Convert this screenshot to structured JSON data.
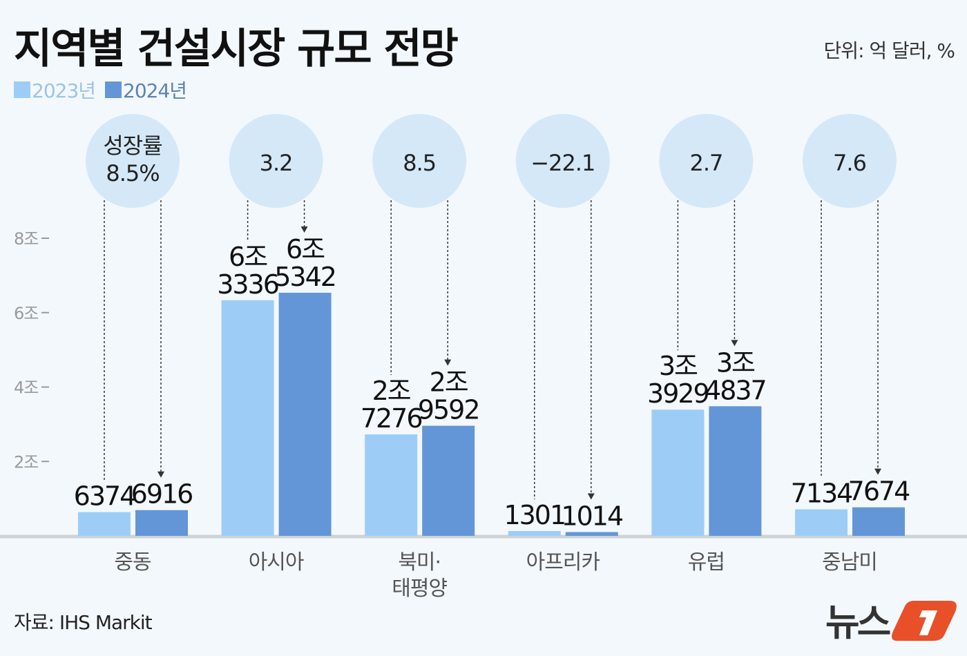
{
  "title": "지역별 건설시장 규모 전망",
  "unit": "단위: 억 달러, %",
  "source": "자료: IHS Markit",
  "logo_text": "뉴스1",
  "colors": {
    "y2023": "#9dcdf7",
    "y2024": "#6396d6",
    "circle": "#d4e8f8",
    "axis": "#cfd3d6",
    "accent": "#e8502a"
  },
  "chart_data": {
    "type": "bar",
    "title": "지역별 건설시장 규모 전망",
    "categories": [
      "중동",
      "아시아",
      "북미·\n태평양",
      "아프리카",
      "유럽",
      "중남미"
    ],
    "series": [
      {
        "name": "2023년",
        "values": [
          6374,
          63336,
          27276,
          1301,
          33929,
          7134
        ],
        "labels": [
          [
            "6374"
          ],
          [
            "6조",
            "3336"
          ],
          [
            "2조",
            "7276"
          ],
          [
            "1301"
          ],
          [
            "3조",
            "3929"
          ],
          [
            "7134"
          ]
        ]
      },
      {
        "name": "2024년",
        "values": [
          6916,
          65342,
          29592,
          1014,
          34837,
          7674
        ],
        "labels": [
          [
            "6916"
          ],
          [
            "6조",
            "5342"
          ],
          [
            "2조",
            "9592"
          ],
          [
            "1014"
          ],
          [
            "3조",
            "4837"
          ],
          [
            "7674"
          ]
        ]
      }
    ],
    "growth_rates": [
      [
        "성장률",
        "8.5%"
      ],
      [
        "3.2"
      ],
      [
        "8.5"
      ],
      [
        "−22.1"
      ],
      [
        "2.7"
      ],
      [
        "7.6"
      ]
    ],
    "ylim": [
      0,
      80000
    ],
    "yticks": [
      {
        "value": 20000,
        "label": "2조"
      },
      {
        "value": 40000,
        "label": "4조"
      },
      {
        "value": 60000,
        "label": "6조"
      },
      {
        "value": 80000,
        "label": "8조"
      }
    ],
    "grid": false,
    "legend": "top-left"
  }
}
